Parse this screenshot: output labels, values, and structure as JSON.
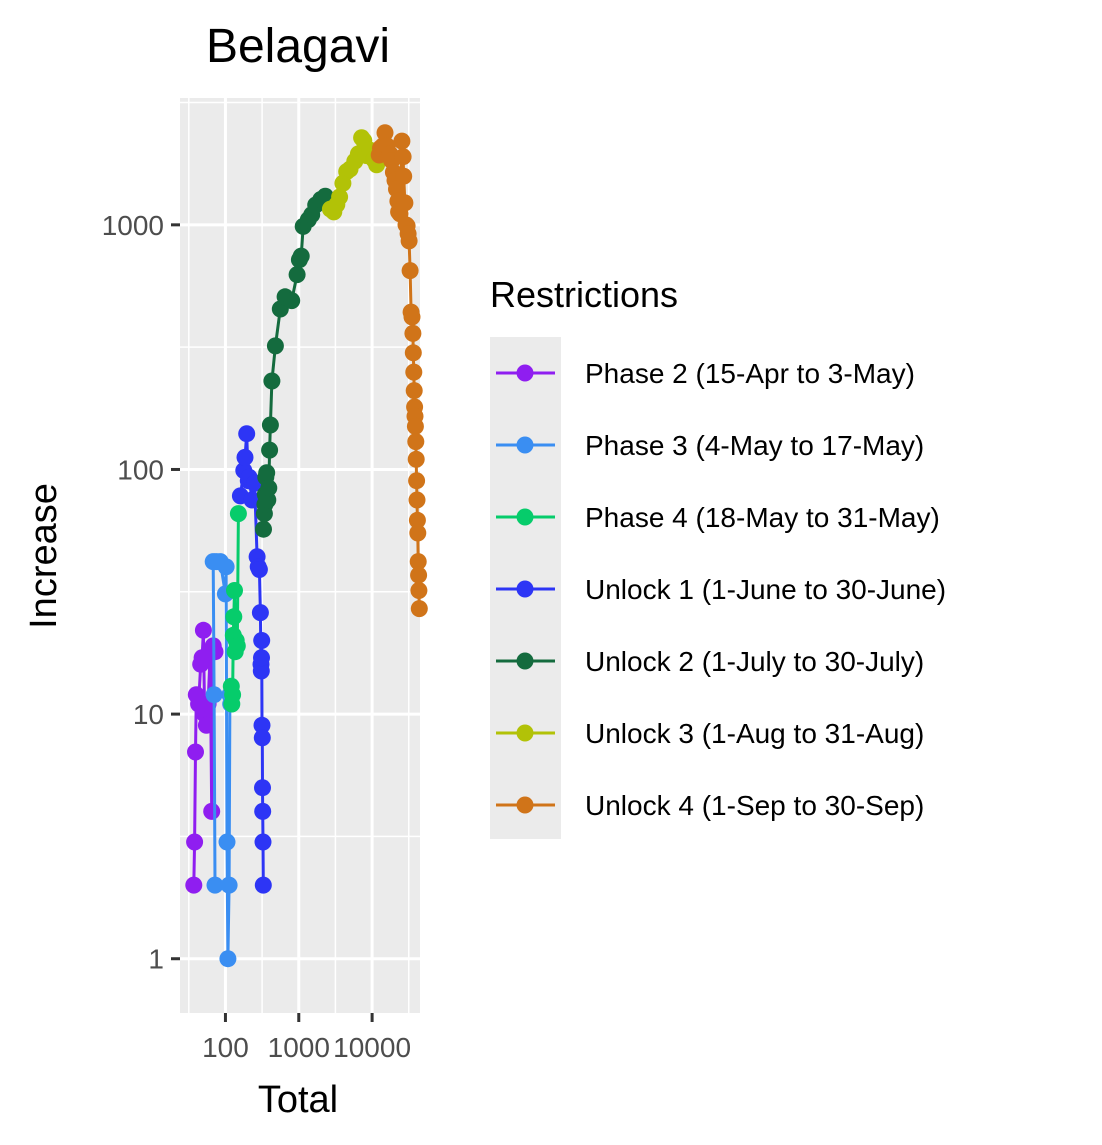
{
  "chart_data": {
    "type": "line",
    "title": "Belagavi",
    "xlabel": "Total",
    "ylabel": "Increase",
    "x_scale": "log10",
    "y_scale": "log10",
    "xlim": [
      24,
      45000
    ],
    "ylim": [
      0.6,
      3300
    ],
    "x_ticks": [
      {
        "value": 100,
        "label": "100"
      },
      {
        "value": 1000,
        "label": "1000"
      },
      {
        "value": 10000,
        "label": "10000"
      }
    ],
    "y_ticks": [
      {
        "value": 1,
        "label": "1"
      },
      {
        "value": 10,
        "label": "10"
      },
      {
        "value": 100,
        "label": "100"
      },
      {
        "value": 1000,
        "label": "1000"
      }
    ],
    "legend_title": "Restrictions",
    "legend_position": "right",
    "grid": true,
    "panel_background": "#ebebeb",
    "series": [
      {
        "name": "Phase 2 (15-Apr to 3-May)",
        "color": "#8f1ef0",
        "points": [
          [
            37,
            2
          ],
          [
            38,
            3
          ],
          [
            39,
            7
          ],
          [
            40,
            12
          ],
          [
            43,
            11
          ],
          [
            46,
            16
          ],
          [
            48,
            17
          ],
          [
            50,
            22
          ],
          [
            52,
            10
          ],
          [
            55,
            9
          ],
          [
            58,
            11
          ],
          [
            62,
            18
          ],
          [
            65,
            4
          ],
          [
            68,
            19
          ],
          [
            72,
            18
          ]
        ]
      },
      {
        "name": "Phase 3 (4-May to 17-May)",
        "color": "#3a8ef2",
        "points": [
          [
            72,
            2
          ],
          [
            70,
            12
          ],
          [
            68,
            42
          ],
          [
            75,
            42
          ],
          [
            85,
            42
          ],
          [
            100,
            31
          ],
          [
            102,
            40
          ],
          [
            105,
            3
          ],
          [
            108,
            1
          ],
          [
            112,
            2
          ],
          [
            115,
            12
          ],
          [
            118,
            11
          ]
        ]
      },
      {
        "name": "Phase 4 (18-May to 31-May)",
        "color": "#06cc6b",
        "points": [
          [
            120,
            13
          ],
          [
            122,
            11
          ],
          [
            125,
            12
          ],
          [
            128,
            21
          ],
          [
            130,
            25
          ],
          [
            133,
            32
          ],
          [
            136,
            18
          ],
          [
            140,
            20
          ],
          [
            145,
            19
          ],
          [
            150,
            66
          ]
        ]
      },
      {
        "name": "Unlock 1 (1-June to 30-June)",
        "color": "#2d35f5",
        "points": [
          [
            160,
            78
          ],
          [
            178,
            99
          ],
          [
            185,
            112
          ],
          [
            195,
            140
          ],
          [
            205,
            90
          ],
          [
            210,
            93
          ],
          [
            230,
            75
          ],
          [
            250,
            88
          ],
          [
            270,
            44
          ],
          [
            280,
            40
          ],
          [
            290,
            39
          ],
          [
            300,
            26
          ],
          [
            305,
            16
          ],
          [
            308,
            15
          ],
          [
            310,
            17
          ],
          [
            312,
            20
          ],
          [
            315,
            9
          ],
          [
            318,
            8
          ],
          [
            320,
            5
          ],
          [
            322,
            4
          ],
          [
            325,
            3
          ],
          [
            328,
            2
          ]
        ]
      },
      {
        "name": "Unlock 2 (1-July to 30-July)",
        "color": "#146b3e",
        "points": [
          [
            330,
            57
          ],
          [
            340,
            66
          ],
          [
            345,
            72
          ],
          [
            350,
            79
          ],
          [
            355,
            93
          ],
          [
            365,
            97
          ],
          [
            378,
            75
          ],
          [
            390,
            84
          ],
          [
            400,
            120
          ],
          [
            410,
            152
          ],
          [
            430,
            230
          ],
          [
            480,
            320
          ],
          [
            560,
            453
          ],
          [
            650,
            508
          ],
          [
            800,
            490
          ],
          [
            950,
            626
          ],
          [
            1020,
            720
          ],
          [
            1080,
            745
          ],
          [
            1150,
            985
          ],
          [
            1350,
            1050
          ],
          [
            1500,
            1100
          ],
          [
            1700,
            1205
          ],
          [
            2000,
            1270
          ],
          [
            2300,
            1310
          ]
        ]
      },
      {
        "name": "Unlock 3 (1-Aug to 31-Aug)",
        "color": "#b2c207",
        "points": [
          [
            2700,
            1160
          ],
          [
            3000,
            1130
          ],
          [
            3300,
            1210
          ],
          [
            3600,
            1300
          ],
          [
            4000,
            1480
          ],
          [
            4500,
            1650
          ],
          [
            5000,
            1690
          ],
          [
            5800,
            1820
          ],
          [
            6500,
            1950
          ],
          [
            7200,
            2270
          ],
          [
            7700,
            2210
          ],
          [
            8300,
            1920
          ],
          [
            9300,
            2020
          ],
          [
            10500,
            1850
          ],
          [
            11000,
            1880
          ],
          [
            11500,
            1760
          ]
        ]
      },
      {
        "name": "Unlock 4 (1-Sep to 30-Sep)",
        "color": "#d07419",
        "points": [
          [
            12500,
            1930
          ],
          [
            13000,
            2060
          ],
          [
            14000,
            2100
          ],
          [
            15000,
            2380
          ],
          [
            16000,
            2100
          ],
          [
            17500,
            1950
          ],
          [
            18500,
            1830
          ],
          [
            19500,
            1640
          ],
          [
            20500,
            1520
          ],
          [
            21500,
            1400
          ],
          [
            22500,
            1250
          ],
          [
            23000,
            1130
          ],
          [
            24000,
            1110
          ],
          [
            25500,
            2200
          ],
          [
            26500,
            1900
          ],
          [
            27000,
            1580
          ],
          [
            28000,
            1230
          ],
          [
            29000,
            1000
          ],
          [
            30000,
            990
          ],
          [
            31000,
            920
          ],
          [
            32000,
            860
          ],
          [
            33000,
            650
          ],
          [
            34000,
            440
          ],
          [
            35000,
            420
          ],
          [
            36000,
            360
          ],
          [
            36500,
            300
          ],
          [
            37000,
            250
          ],
          [
            37500,
            210
          ],
          [
            38000,
            180
          ],
          [
            38500,
            165
          ],
          [
            39000,
            150
          ],
          [
            39500,
            130
          ],
          [
            40000,
            110
          ],
          [
            40500,
            90
          ],
          [
            41000,
            75
          ],
          [
            41500,
            62
          ],
          [
            42000,
            55
          ],
          [
            42500,
            42
          ],
          [
            43000,
            37
          ],
          [
            43500,
            32
          ],
          [
            44000,
            27
          ]
        ]
      }
    ]
  }
}
